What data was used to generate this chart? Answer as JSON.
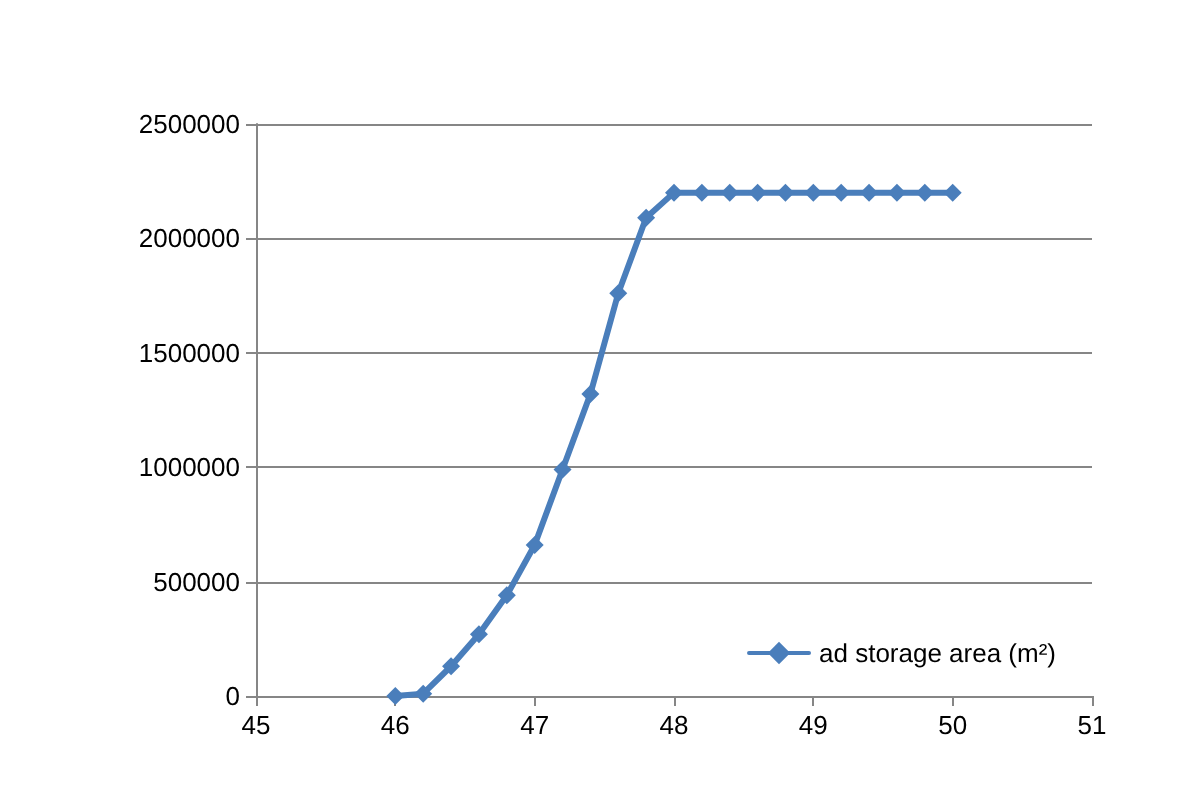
{
  "chart_data": {
    "type": "line",
    "x": [
      46,
      46.2,
      46.4,
      46.6,
      46.8,
      47,
      47.2,
      47.4,
      47.6,
      47.8,
      48,
      48.2,
      48.4,
      48.6,
      48.8,
      49,
      49.2,
      49.4,
      49.6,
      49.8,
      50
    ],
    "series": [
      {
        "name": "ad storage area (m²)",
        "color": "#4a7ebb",
        "values": [
          0,
          10000,
          130000,
          270000,
          440000,
          660000,
          990000,
          1320000,
          1760000,
          2090000,
          2200000,
          2200000,
          2200000,
          2200000,
          2200000,
          2200000,
          2200000,
          2200000,
          2200000,
          2200000,
          2200000
        ]
      }
    ],
    "xlim": [
      45,
      51
    ],
    "xticks": [
      45,
      46,
      47,
      48,
      49,
      50,
      51
    ],
    "ylim": [
      0,
      2500000
    ],
    "yticks": [
      0,
      500000,
      1000000,
      1500000,
      2000000,
      2500000
    ],
    "grid": "y",
    "legend": "bottom right",
    "marker": "diamond",
    "line_style": "solid"
  }
}
